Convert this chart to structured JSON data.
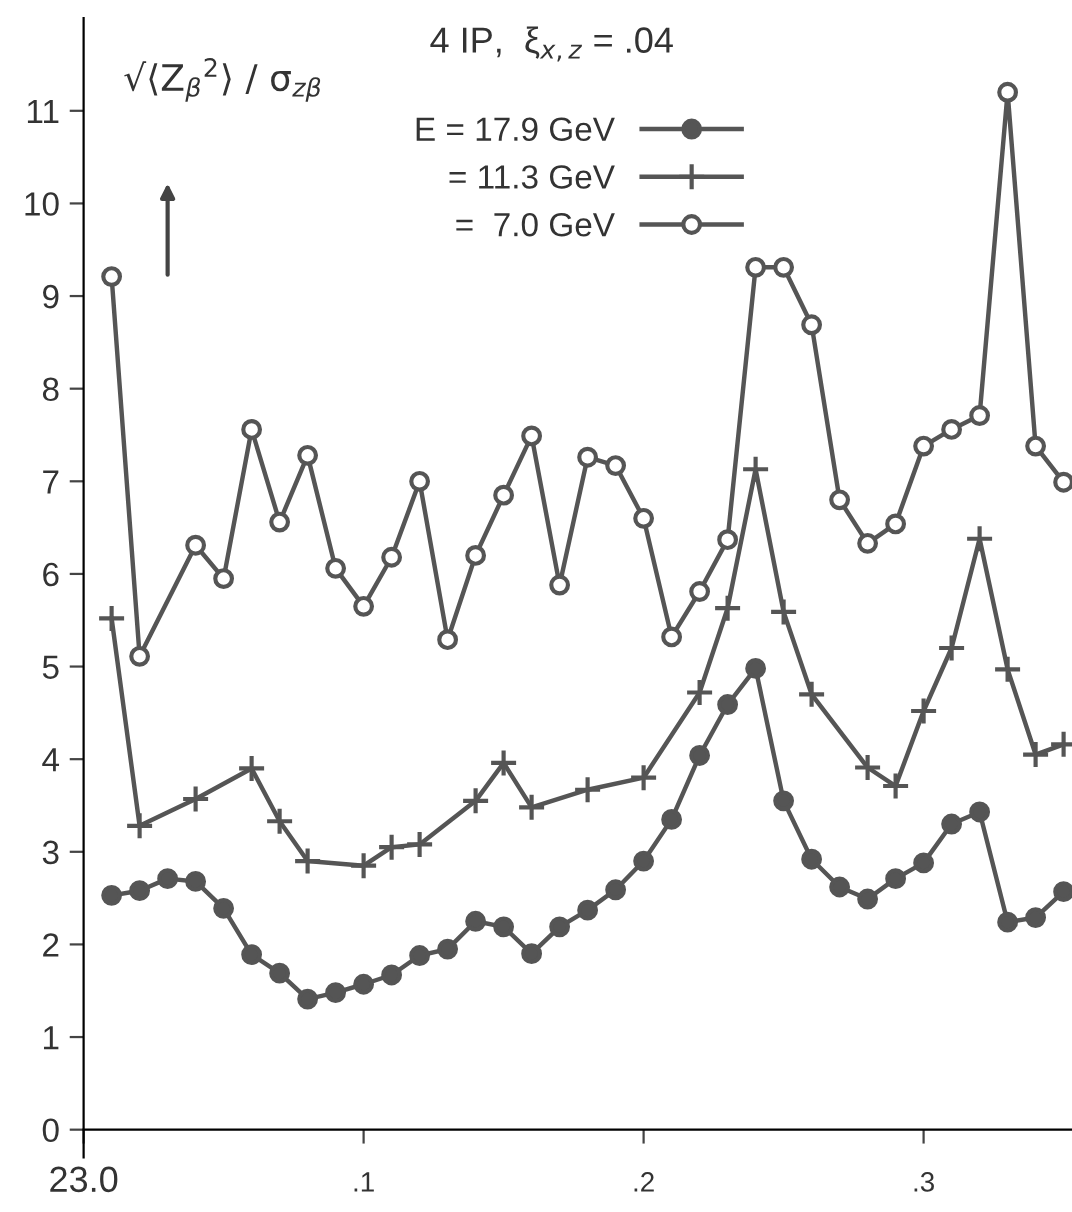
{
  "chart_data": {
    "type": "line",
    "title": "4 IP,  ξ$_{x,z}$ = .04",
    "ylabel": "√⟨Z$_{β}$$^{2}$⟩ / σ$_{zβ}$",
    "series": [
      {
        "name": "E = 17.9 GeV",
        "color": "#555555",
        "marker": "circle",
        "x": [
          0.01,
          0.02,
          0.03,
          0.04,
          0.05,
          0.06,
          0.07,
          0.08,
          0.09,
          0.1,
          0.11,
          0.12,
          0.13,
          0.14,
          0.15,
          0.16,
          0.17,
          0.18,
          0.19,
          0.2,
          0.21,
          0.22,
          0.23,
          0.24,
          0.25,
          0.26,
          0.27,
          0.28,
          0.29,
          0.3,
          0.31,
          0.32,
          0.33,
          0.34,
          0.35
        ],
        "values": [
          2.53,
          2.58,
          2.71,
          2.68,
          2.39,
          1.89,
          1.69,
          1.41,
          1.48,
          1.57,
          1.67,
          1.88,
          1.95,
          2.25,
          2.19,
          1.9,
          2.19,
          2.37,
          2.59,
          2.9,
          3.35,
          4.04,
          4.59,
          4.98,
          3.55,
          2.92,
          2.62,
          2.49,
          2.71,
          2.88,
          3.3,
          3.43,
          2.24,
          2.29,
          2.57
        ]
      },
      {
        "name": "= 11.3 GeV",
        "color": "#555555",
        "marker": "cross",
        "x": [
          0.01,
          0.02,
          0.04,
          0.06,
          0.07,
          0.08,
          0.1,
          0.11,
          0.12,
          0.14,
          0.15,
          0.16,
          0.18,
          0.2,
          0.22,
          0.23,
          0.24,
          0.25,
          0.26,
          0.28,
          0.29,
          0.3,
          0.31,
          0.32,
          0.33,
          0.34,
          0.35
        ],
        "values": [
          5.52,
          3.28,
          3.57,
          3.9,
          3.33,
          2.9,
          2.85,
          3.05,
          3.08,
          3.55,
          3.96,
          3.48,
          3.67,
          3.8,
          4.72,
          5.63,
          7.13,
          5.59,
          4.7,
          3.91,
          3.71,
          4.52,
          5.2,
          6.38,
          4.97,
          4.05,
          4.16
        ]
      },
      {
        "name": "=  7.0 GeV",
        "color": "#555555",
        "marker": "circle",
        "x": [
          0.01,
          0.02,
          0.04,
          0.05,
          0.06,
          0.07,
          0.08,
          0.09,
          0.1,
          0.11,
          0.12,
          0.13,
          0.14,
          0.15,
          0.16,
          0.17,
          0.18,
          0.19,
          0.2,
          0.21,
          0.22,
          0.23,
          0.24,
          0.25,
          0.26,
          0.27,
          0.28,
          0.29,
          0.3,
          0.31,
          0.32,
          0.33,
          0.34,
          0.35
        ],
        "values": [
          9.21,
          5.11,
          6.31,
          5.95,
          7.56,
          6.56,
          7.28,
          6.06,
          5.65,
          6.18,
          7.0,
          5.29,
          6.2,
          6.85,
          7.49,
          5.88,
          7.26,
          7.17,
          6.6,
          5.32,
          5.81,
          6.37,
          9.31,
          9.31,
          8.69,
          6.8,
          6.33,
          6.54,
          7.38,
          7.56,
          7.71,
          11.2,
          7.38,
          6.99
        ]
      }
    ],
    "xlim": [
      0,
      0.353
    ],
    "annotations": [
      "23.0"
    ],
    "xticks": [
      {
        "value": 0,
        "label": null
      },
      {
        "value": 0.1,
        "label": ".1"
      },
      {
        "value": 0.2,
        "label": ".2"
      },
      {
        "value": 0.3,
        "label": ".3"
      }
    ],
    "ylim": [
      -0.3,
      12
    ],
    "yticks": [
      0,
      1,
      2,
      3,
      4,
      5,
      6,
      7,
      8,
      9,
      10,
      11
    ],
    "grid": false,
    "legend": "top",
    "line_style": "solid"
  }
}
